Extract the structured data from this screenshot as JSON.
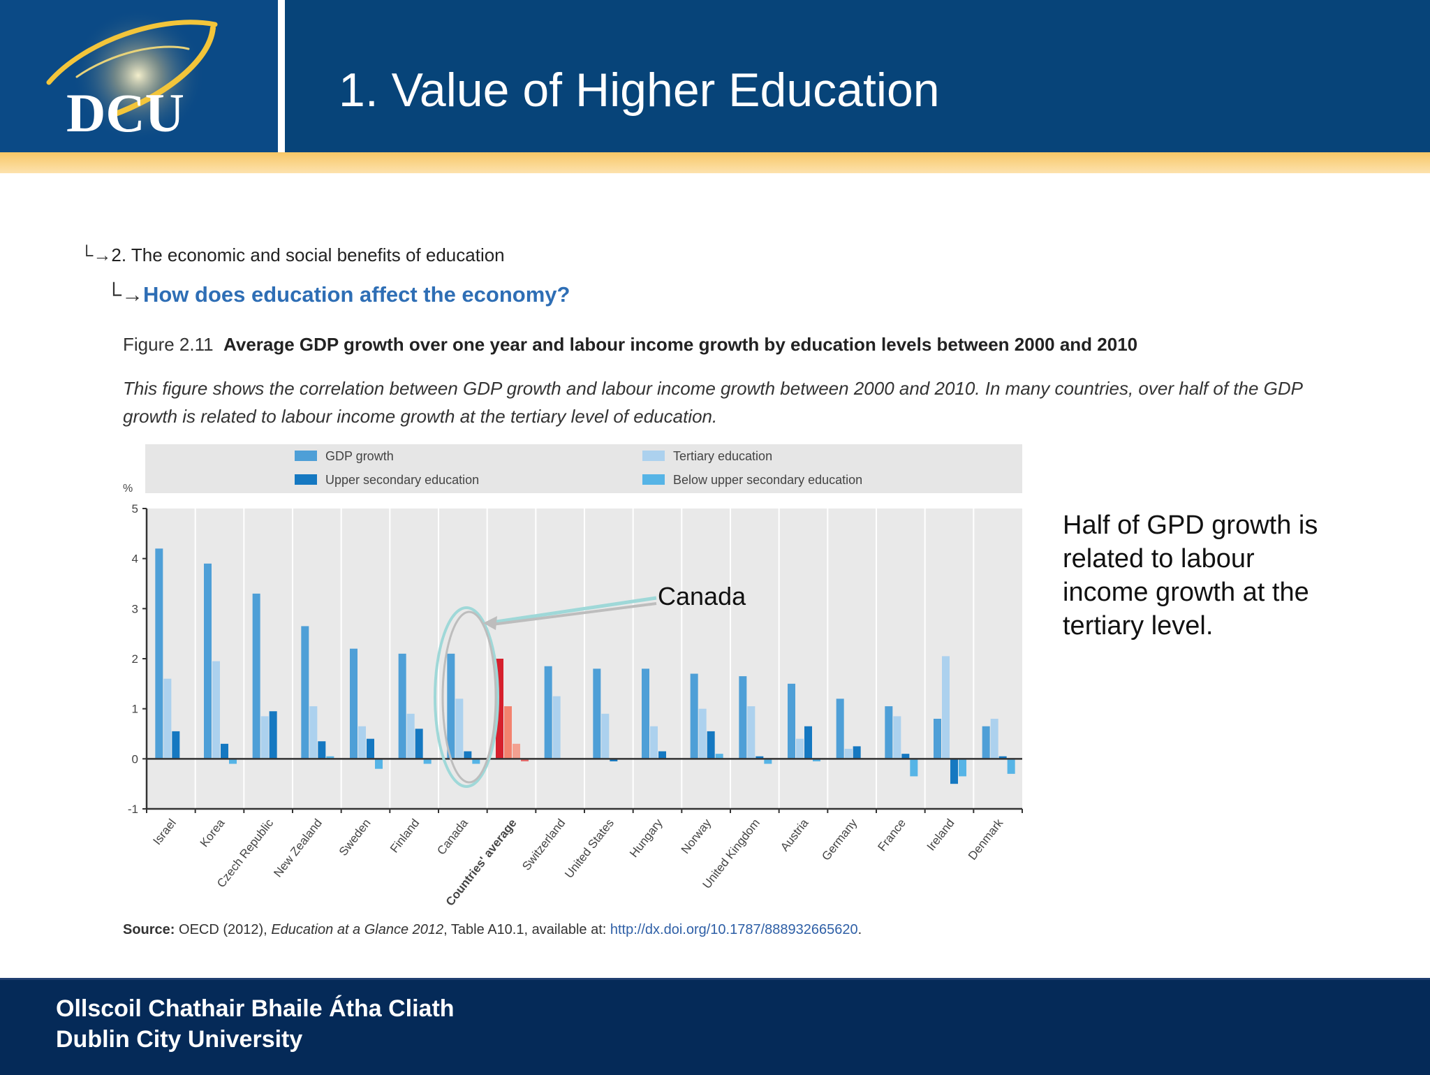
{
  "slide": {
    "title": "1. Value of Higher Education",
    "logo_text": "DCU",
    "footer_line_1": "Ollscoil Chathair Bhaile Átha Cliath",
    "footer_line_2": "Dublin City University",
    "side_note": "Half of GPD growth is related to labour income growth at the tertiary level."
  },
  "figure": {
    "breadcrumb_1": "2. The economic and social benefits of education",
    "breadcrumb_2": "How does education affect the economy?",
    "label": "Figure 2.11",
    "title": "Average GDP growth over one year and labour income growth by education levels between 2000 and 2010",
    "description": "This figure shows the correlation between GDP growth and labour income growth between 2000 and 2010. In many countries, over half of the GDP growth is related to labour income growth at the tertiary level of education.",
    "source_label": "Source:",
    "source_text_1": "OECD (2012),",
    "source_text_italic": "Education at a Glance 2012",
    "source_text_2": ", Table A10.1, available at:",
    "source_link": "http://dx.doi.org/10.1787/888932665620",
    "source_end": "."
  },
  "chart_data": {
    "type": "bar",
    "ylabel": "%",
    "ylim": [
      -1,
      5
    ],
    "yticks": [
      5,
      4,
      3,
      2,
      1,
      0,
      -1
    ],
    "grid": true,
    "legend_position": "top",
    "categories": [
      "Israel",
      "Korea",
      "Czech Republic",
      "New Zealand",
      "Sweden",
      "Finland",
      "Canada",
      "Countries' average",
      "Switzerland",
      "United States",
      "Hungary",
      "Norway",
      "United Kingdom",
      "Austria",
      "Germany",
      "France",
      "Ireland",
      "Denmark"
    ],
    "highlight_category": "Countries' average",
    "series": [
      {
        "name": "GDP growth",
        "color": "#4e9fd7",
        "values": [
          4.2,
          3.9,
          3.3,
          2.65,
          2.2,
          2.1,
          2.1,
          2.0,
          1.85,
          1.8,
          1.8,
          1.7,
          1.65,
          1.5,
          1.2,
          1.05,
          0.8,
          0.65
        ]
      },
      {
        "name": "Tertiary education",
        "color": "#acd1ee",
        "values": [
          1.6,
          1.95,
          0.85,
          1.05,
          0.65,
          0.9,
          1.2,
          1.05,
          1.25,
          0.9,
          0.65,
          1.0,
          1.05,
          0.4,
          0.2,
          0.85,
          2.05,
          0.8
        ]
      },
      {
        "name": "Upper secondary education",
        "color": "#1578c1",
        "values": [
          0.55,
          0.3,
          0.95,
          0.35,
          0.4,
          0.6,
          0.15,
          0.3,
          0.0,
          -0.05,
          0.15,
          0.55,
          0.05,
          0.65,
          0.25,
          0.1,
          -0.5,
          0.05
        ]
      },
      {
        "name": "Below upper secondary education",
        "color": "#56b4e6",
        "values": [
          0.0,
          -0.1,
          0.0,
          0.05,
          -0.2,
          -0.1,
          -0.1,
          -0.05,
          0.0,
          0.0,
          0.0,
          0.1,
          -0.1,
          -0.05,
          0.0,
          -0.35,
          -0.35,
          -0.3
        ]
      }
    ],
    "highlight_colors": [
      "#d6202d",
      "#f3826e",
      "#f3a090",
      "#e86a6a"
    ],
    "annotation": "Canada"
  }
}
